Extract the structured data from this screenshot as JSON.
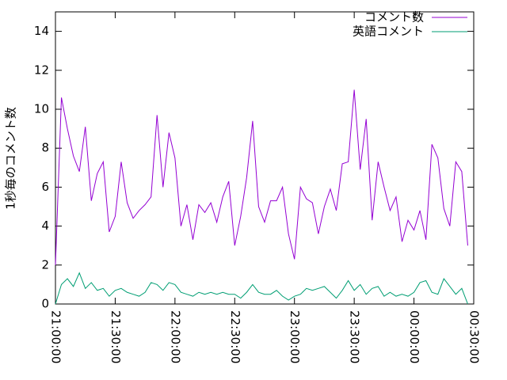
{
  "chart_data": {
    "type": "line",
    "y_label": "1秒毎のコメント数",
    "x": [
      "21:00:00",
      "21:03:00",
      "21:06:00",
      "21:09:00",
      "21:12:00",
      "21:15:00",
      "21:18:00",
      "21:21:00",
      "21:24:00",
      "21:27:00",
      "21:30:00",
      "21:33:00",
      "21:36:00",
      "21:39:00",
      "21:42:00",
      "21:45:00",
      "21:48:00",
      "21:51:00",
      "21:54:00",
      "21:57:00",
      "22:00:00",
      "22:03:00",
      "22:06:00",
      "22:09:00",
      "22:12:00",
      "22:15:00",
      "22:18:00",
      "22:21:00",
      "22:24:00",
      "22:27:00",
      "22:30:00",
      "22:33:00",
      "22:36:00",
      "22:39:00",
      "22:42:00",
      "22:45:00",
      "22:48:00",
      "22:51:00",
      "22:54:00",
      "22:57:00",
      "23:00:00",
      "23:03:00",
      "23:06:00",
      "23:09:00",
      "23:12:00",
      "23:15:00",
      "23:18:00",
      "23:21:00",
      "23:24:00",
      "23:27:00",
      "23:30:00",
      "23:33:00",
      "23:36:00",
      "23:39:00",
      "23:42:00",
      "23:45:00",
      "23:48:00",
      "23:51:00",
      "23:54:00",
      "23:57:00",
      "00:00:00",
      "00:03:00",
      "00:06:00",
      "00:09:00",
      "00:12:00",
      "00:15:00",
      "00:18:00",
      "00:21:00",
      "00:24:00",
      "00:27:00"
    ],
    "series": [
      {
        "name": "コメント数",
        "color": "#9400d3",
        "values": [
          2.0,
          10.6,
          9.0,
          7.6,
          6.8,
          9.1,
          5.3,
          6.7,
          7.3,
          3.7,
          4.5,
          7.3,
          5.2,
          4.4,
          4.8,
          5.1,
          5.5,
          9.7,
          6.0,
          8.8,
          7.5,
          4.0,
          5.1,
          3.3,
          5.1,
          4.7,
          5.2,
          4.2,
          5.5,
          6.3,
          3.0,
          4.5,
          6.5,
          9.4,
          5.0,
          4.2,
          5.3,
          5.3,
          6.0,
          3.6,
          2.3,
          6.0,
          5.4,
          5.2,
          3.6,
          5.0,
          5.9,
          4.8,
          7.2,
          7.3,
          11.0,
          6.9,
          9.5,
          4.3,
          7.3,
          6.0,
          4.8,
          5.5,
          3.2,
          4.3,
          3.8,
          4.8,
          3.3,
          8.2,
          7.5,
          4.9,
          4.0,
          7.3,
          6.8,
          3.0
        ]
      },
      {
        "name": "英語コメント",
        "color": "#009e73",
        "values": [
          0.0,
          1.0,
          1.3,
          0.9,
          1.6,
          0.8,
          1.1,
          0.7,
          0.8,
          0.4,
          0.7,
          0.8,
          0.6,
          0.5,
          0.4,
          0.6,
          1.1,
          1.0,
          0.7,
          1.1,
          1.0,
          0.6,
          0.5,
          0.4,
          0.6,
          0.5,
          0.6,
          0.5,
          0.6,
          0.5,
          0.5,
          0.3,
          0.6,
          1.0,
          0.6,
          0.5,
          0.5,
          0.7,
          0.4,
          0.2,
          0.4,
          0.5,
          0.8,
          0.7,
          0.8,
          0.9,
          0.6,
          0.3,
          0.7,
          1.2,
          0.7,
          1.0,
          0.5,
          0.8,
          0.9,
          0.4,
          0.6,
          0.4,
          0.5,
          0.4,
          0.6,
          1.1,
          1.2,
          0.6,
          0.5,
          1.3,
          0.9,
          0.5,
          0.8,
          0.0
        ]
      }
    ],
    "xlim": [
      "21:00:00",
      "00:30:00"
    ],
    "xticks": [
      "21:00:00",
      "21:30:00",
      "22:00:00",
      "22:30:00",
      "23:00:00",
      "23:30:00",
      "00:00:00",
      "00:30:00"
    ],
    "ylim": [
      0,
      15
    ],
    "yticks": [
      0,
      2,
      4,
      6,
      8,
      10,
      12,
      14
    ],
    "legend": "top-right"
  }
}
